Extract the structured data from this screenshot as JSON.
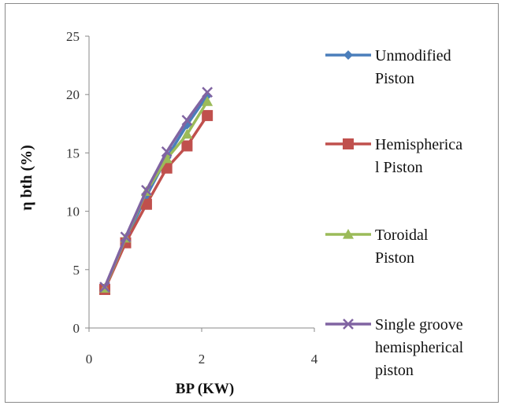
{
  "chart_data": {
    "type": "line",
    "title": "",
    "xlabel": "BP (KW)",
    "ylabel": "η bth (%)",
    "xlim": [
      0,
      4
    ],
    "ylim": [
      0,
      25
    ],
    "xticks": [
      "0",
      "2",
      "4"
    ],
    "yticks": [
      "0",
      "5",
      "10",
      "15",
      "20",
      "25"
    ],
    "grid": false,
    "legend_position": "right",
    "series": [
      {
        "name": "Unmodified Piston",
        "legend_lines": [
          "Unmodified",
          "Piston"
        ],
        "color": "#4a7ebb",
        "marker": "diamond",
        "x": [
          0.28,
          0.65,
          1.02,
          1.38,
          1.74,
          2.1
        ],
        "y": [
          3.4,
          7.6,
          11.3,
          14.6,
          17.4,
          19.9
        ]
      },
      {
        "name": "Hemispherical Piston",
        "legend_lines": [
          "Hemisphericа",
          "l Piston"
        ],
        "color": "#c0504d",
        "marker": "square",
        "x": [
          0.28,
          0.65,
          1.02,
          1.38,
          1.74,
          2.1
        ],
        "y": [
          3.3,
          7.3,
          10.6,
          13.7,
          15.6,
          18.2
        ]
      },
      {
        "name": "Toroidal Piston",
        "legend_lines": [
          "Toroidal",
          "Piston"
        ],
        "color": "#9bbb59",
        "marker": "triangle",
        "x": [
          0.28,
          0.65,
          1.02,
          1.38,
          1.74,
          2.1
        ],
        "y": [
          3.4,
          7.7,
          11.7,
          14.5,
          16.6,
          19.4
        ]
      },
      {
        "name": "Single groove hemispherical piston",
        "legend_lines": [
          "Single groove",
          "hemispherical",
          "piston"
        ],
        "color": "#8064a2",
        "marker": "x",
        "x": [
          0.28,
          0.65,
          1.02,
          1.38,
          1.74,
          2.1
        ],
        "y": [
          3.5,
          7.8,
          11.8,
          15.1,
          17.8,
          20.2
        ]
      }
    ]
  }
}
